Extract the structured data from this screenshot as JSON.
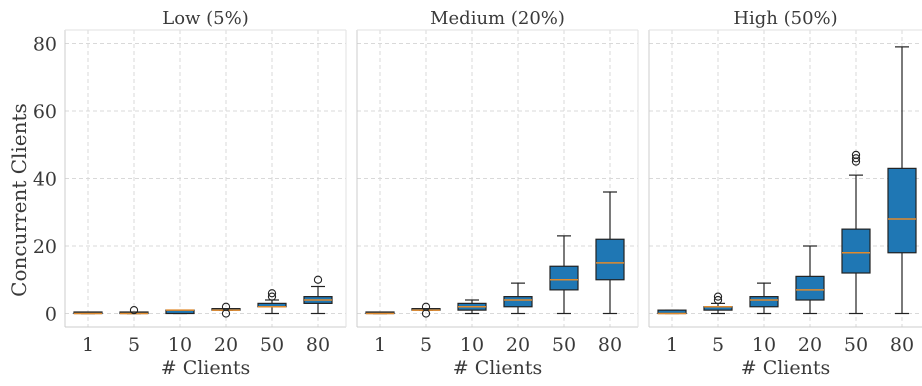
{
  "chart_data": {
    "type": "boxplot",
    "ylabel": "Concurrent Clients",
    "xlabel": "# Clients",
    "ylim": [
      -4,
      84
    ],
    "yticks": [
      0,
      20,
      40,
      60,
      80
    ],
    "categories": [
      "1",
      "5",
      "10",
      "20",
      "50",
      "80"
    ],
    "grid": true,
    "box_color": "#1f77b4",
    "median_color": "#e08a2c",
    "panels": [
      {
        "title": "Low (5%)",
        "boxes": [
          {
            "category": "1",
            "whislo": 0,
            "q1": 0,
            "med": 0,
            "q3": 0,
            "whishi": 0,
            "fliers": []
          },
          {
            "category": "5",
            "whislo": 0,
            "q1": 0,
            "med": 0,
            "q3": 0,
            "whishi": 0,
            "fliers": [
              1
            ]
          },
          {
            "category": "10",
            "whislo": 0,
            "q1": 0,
            "med": 1,
            "q3": 1,
            "whishi": 1,
            "fliers": []
          },
          {
            "category": "20",
            "whislo": 1,
            "q1": 1,
            "med": 1,
            "q3": 1,
            "whishi": 1,
            "fliers": [
              0,
              2
            ]
          },
          {
            "category": "50",
            "whislo": 0,
            "q1": 2,
            "med": 2,
            "q3": 3,
            "whishi": 4,
            "fliers": [
              5,
              6
            ]
          },
          {
            "category": "80",
            "whislo": 0,
            "q1": 3,
            "med": 4,
            "q3": 5,
            "whishi": 8,
            "fliers": [
              10
            ]
          }
        ]
      },
      {
        "title": "Medium (20%)",
        "boxes": [
          {
            "category": "1",
            "whislo": 0,
            "q1": 0,
            "med": 0,
            "q3": 0,
            "whishi": 0,
            "fliers": []
          },
          {
            "category": "5",
            "whislo": 1,
            "q1": 1,
            "med": 1,
            "q3": 1,
            "whishi": 1,
            "fliers": [
              0,
              2
            ]
          },
          {
            "category": "10",
            "whislo": 0,
            "q1": 1,
            "med": 2,
            "q3": 3,
            "whishi": 4,
            "fliers": []
          },
          {
            "category": "20",
            "whislo": 0,
            "q1": 2,
            "med": 4,
            "q3": 5,
            "whishi": 9,
            "fliers": []
          },
          {
            "category": "50",
            "whislo": 0,
            "q1": 7,
            "med": 10,
            "q3": 14,
            "whishi": 23,
            "fliers": []
          },
          {
            "category": "80",
            "whislo": 0,
            "q1": 10,
            "med": 15,
            "q3": 22,
            "whishi": 36,
            "fliers": []
          }
        ]
      },
      {
        "title": "High (50%)",
        "boxes": [
          {
            "category": "1",
            "whislo": 0,
            "q1": 0,
            "med": 0,
            "q3": 1,
            "whishi": 1,
            "fliers": []
          },
          {
            "category": "5",
            "whislo": 0,
            "q1": 1,
            "med": 2,
            "q3": 2,
            "whishi": 3,
            "fliers": [
              4,
              5
            ]
          },
          {
            "category": "10",
            "whislo": 0,
            "q1": 2,
            "med": 4,
            "q3": 5,
            "whishi": 9,
            "fliers": []
          },
          {
            "category": "20",
            "whislo": 0,
            "q1": 4,
            "med": 7,
            "q3": 11,
            "whishi": 20,
            "fliers": []
          },
          {
            "category": "50",
            "whislo": 0,
            "q1": 12,
            "med": 18,
            "q3": 25,
            "whishi": 41,
            "fliers": [
              45,
              46,
              47
            ]
          },
          {
            "category": "80",
            "whislo": 0,
            "q1": 18,
            "med": 28,
            "q3": 43,
            "whishi": 79,
            "fliers": []
          }
        ]
      }
    ]
  }
}
